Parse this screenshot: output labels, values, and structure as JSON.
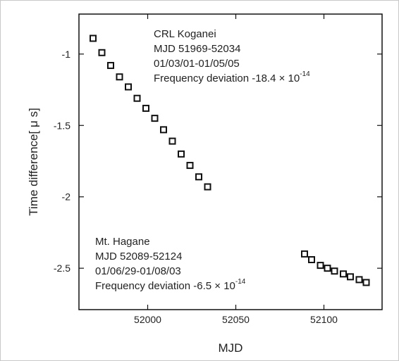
{
  "chart_data": {
    "type": "scatter",
    "xlabel": "MJD",
    "ylabel": "Time difference[ μ s]",
    "xlim": [
      51961,
      52133
    ],
    "ylim": [
      -2.79,
      -0.72
    ],
    "x_ticks": [
      52000,
      52050,
      52100
    ],
    "y_ticks": [
      -1,
      -1.5,
      -2,
      -2.5
    ],
    "grid": false,
    "series": [
      {
        "x": [
          51969,
          51974,
          51979,
          51984,
          51989,
          51994,
          51999,
          52004,
          52009,
          52014,
          52019,
          52024,
          52029,
          52034
        ],
        "y": [
          -0.89,
          -0.99,
          -1.08,
          -1.16,
          -1.23,
          -1.31,
          -1.38,
          -1.45,
          -1.53,
          -1.61,
          -1.7,
          -1.78,
          -1.86,
          -1.93
        ]
      },
      {
        "x": [
          52089,
          52093,
          52098,
          52102,
          52106,
          52111,
          52115,
          52120,
          52124
        ],
        "y": [
          -2.4,
          -2.44,
          -2.48,
          -2.5,
          -2.52,
          -2.54,
          -2.56,
          -2.58,
          -2.6
        ]
      }
    ],
    "annotations": [
      {
        "lines": [
          "CRL Koganei",
          "MJD  51969-52034",
          "01/03/01-01/05/05"
        ],
        "freq_prefix": "Frequency deviation  -18.4 ",
        "freq_times": "×",
        "freq_base": " 10",
        "freq_exp": "-14"
      },
      {
        "lines": [
          "Mt. Hagane",
          "MJD  52089-52124",
          "01/06/29-01/08/03"
        ],
        "freq_prefix": "Frequency deviation  -6.5 ",
        "freq_times": "×",
        "freq_base": " 10",
        "freq_exp": "-14"
      }
    ]
  }
}
